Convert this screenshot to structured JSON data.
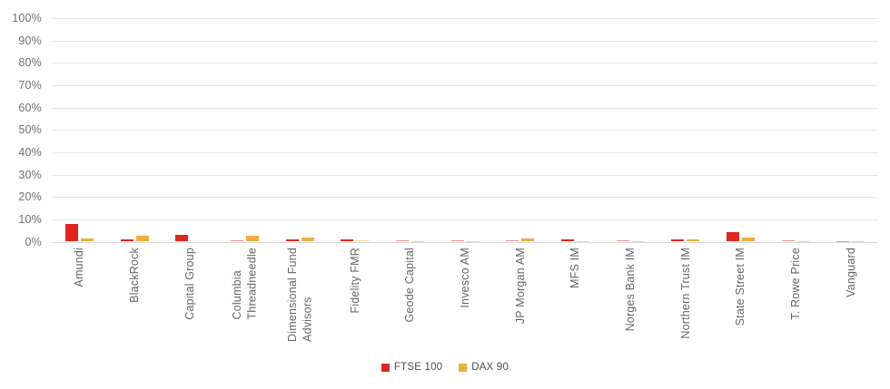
{
  "chart_data": {
    "type": "bar",
    "title": "",
    "categories": [
      "Amundi",
      "BlackRock",
      "Capital Group",
      "Columbia\nThreadneedle",
      "Dimensional Fund\nAdvisors",
      "Fidelity FMR",
      "Geode Capital",
      "Invesco AM",
      "JP Morgan AM",
      "MFS IM",
      "Norges Bank IM",
      "Northern Trust IM",
      "State Street IM",
      "T. Rowe Price",
      "Vanguard"
    ],
    "series": [
      {
        "name": "FTSE 100",
        "color": "#e02620",
        "values": [
          8,
          1.2,
          3.2,
          0.5,
          1,
          1.2,
          0.5,
          0.5,
          0.6,
          1,
          0.5,
          1.2,
          4.4,
          0.7,
          0.4
        ]
      },
      {
        "name": "DAX 90",
        "color": "#f2ac3c",
        "values": [
          1.5,
          2.6,
          0,
          2.6,
          1.7,
          0.6,
          0.3,
          0.3,
          1.4,
          0.2,
          0.3,
          1.2,
          1.7,
          0.1,
          0.2
        ]
      }
    ],
    "ylim": [
      0,
      100
    ],
    "y_ticks": [
      "100%",
      "90%",
      "80%",
      "70%",
      "60%",
      "50%",
      "40%",
      "30%",
      "20%",
      "10%",
      "0%"
    ],
    "grid": "horizontal",
    "legend_position": "bottom-center",
    "colors": {
      "gridline": "#e6e6e6",
      "baseline": "#d9d9d9",
      "axis_text": "#6f6f6f",
      "category_text": "#666666",
      "legend_text": "#4e4e4e",
      "background": "#ffffff"
    }
  }
}
